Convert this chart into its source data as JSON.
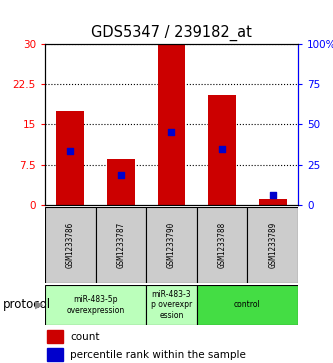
{
  "title": "GDS5347 / 239182_at",
  "samples": [
    "GSM1233786",
    "GSM1233787",
    "GSM1233790",
    "GSM1233788",
    "GSM1233789"
  ],
  "bar_heights": [
    17.5,
    8.5,
    30.0,
    20.5,
    1.2
  ],
  "blue_marker_values": [
    10.0,
    5.5,
    13.5,
    10.5,
    1.8
  ],
  "ylim_left": [
    0,
    30
  ],
  "ylim_right": [
    0,
    100
  ],
  "yticks_left": [
    0,
    7.5,
    15,
    22.5,
    30
  ],
  "ytick_labels_left": [
    "0",
    "7.5",
    "15",
    "22.5",
    "30"
  ],
  "ytick_labels_right": [
    "0",
    "25",
    "50",
    "75",
    "100%"
  ],
  "bar_color": "#cc0000",
  "blue_color": "#0000cc",
  "group_info": [
    {
      "indices": [
        0,
        1
      ],
      "label": "miR-483-5p\noverexpression",
      "color": "#bbffbb"
    },
    {
      "indices": [
        2
      ],
      "label": "miR-483-3\np overexpr\nession",
      "color": "#bbffbb"
    },
    {
      "indices": [
        3,
        4
      ],
      "label": "control",
      "color": "#44dd44"
    }
  ],
  "protocol_label": "protocol",
  "legend_count_label": "count",
  "legend_pct_label": "percentile rank within the sample"
}
